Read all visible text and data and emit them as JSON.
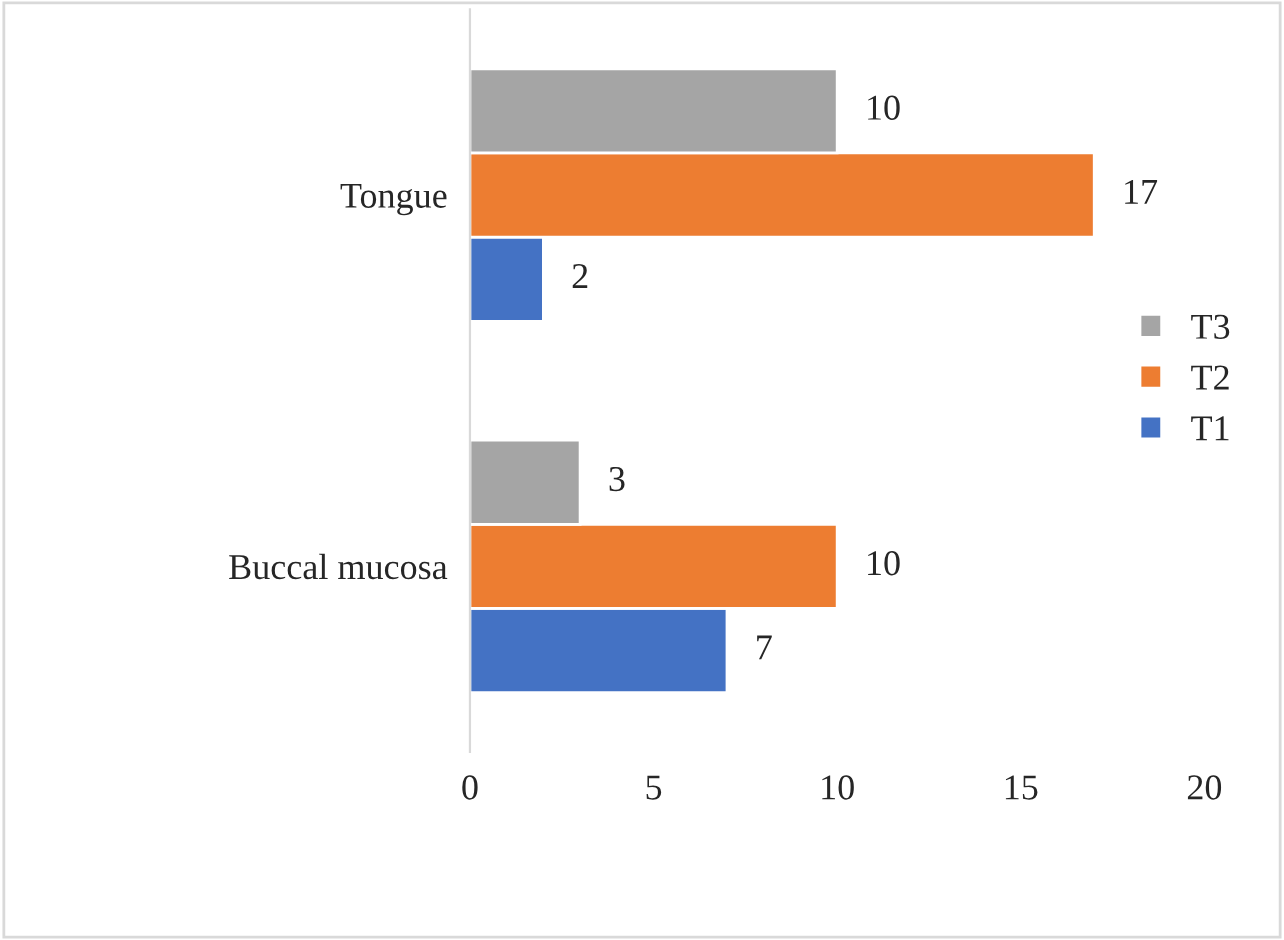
{
  "chart_data": {
    "type": "bar",
    "orientation": "horizontal",
    "categories": [
      "Tongue",
      "Buccal mucosa"
    ],
    "series": [
      {
        "name": "T1",
        "color": "#4472c4",
        "values": [
          2,
          7
        ]
      },
      {
        "name": "T2",
        "color": "#ed7d31",
        "values": [
          17,
          10
        ]
      },
      {
        "name": "T3",
        "color": "#a5a5a5",
        "values": [
          10,
          3
        ]
      }
    ],
    "xlim": [
      0,
      20
    ],
    "xticks": [
      0,
      5,
      10,
      15,
      20
    ],
    "grid": false,
    "legend": "right",
    "data_labels": true
  }
}
